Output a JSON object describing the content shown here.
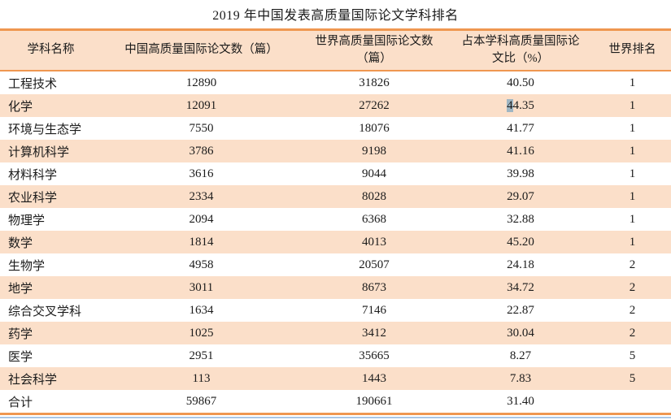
{
  "title": "2019 年中国发表高质量国际论文学科排名",
  "chart_data": {
    "type": "table",
    "title": "2019 年中国发表高质量国际论文学科排名",
    "columns": [
      "学科名称",
      "中国高质量国际论文数（篇）",
      "世界高质量国际论文数（篇）",
      "占本学科高质量国际论文比（%）",
      "世界排名"
    ],
    "rows": [
      [
        "工程技术",
        "12890",
        "31826",
        "40.50",
        "1"
      ],
      [
        "化学",
        "12091",
        "27262",
        "44.35",
        "1"
      ],
      [
        "环境与生态学",
        "7550",
        "18076",
        "41.77",
        "1"
      ],
      [
        "计算机科学",
        "3786",
        "9198",
        "41.16",
        "1"
      ],
      [
        "材料科学",
        "3616",
        "9044",
        "39.98",
        "1"
      ],
      [
        "农业科学",
        "2334",
        "8028",
        "29.07",
        "1"
      ],
      [
        "物理学",
        "2094",
        "6368",
        "32.88",
        "1"
      ],
      [
        "数学",
        "1814",
        "4013",
        "45.20",
        "1"
      ],
      [
        "生物学",
        "4958",
        "20507",
        "24.18",
        "2"
      ],
      [
        "地学",
        "3011",
        "8673",
        "34.72",
        "2"
      ],
      [
        "综合交叉学科",
        "1634",
        "7146",
        "22.87",
        "2"
      ],
      [
        "药学",
        "1025",
        "3412",
        "30.04",
        "2"
      ],
      [
        "医学",
        "2951",
        "35665",
        "8.27",
        "5"
      ],
      [
        "社会科学",
        "113",
        "1443",
        "7.83",
        "5"
      ],
      [
        "合计",
        "59867",
        "190661",
        "31.40",
        ""
      ]
    ],
    "highlight": {
      "row": 1,
      "col": 3,
      "char_index": 0
    },
    "layout_hints": {
      "stripe_pattern": "alternating white and peach rows starting with white",
      "grid": "off"
    }
  },
  "colors": {
    "header_bg": "#fbdfc9",
    "row_stripe": "#fbdfc9",
    "rule_orange": "#ef9750",
    "selection_highlight": "#9fb6c3",
    "page_bottom_line": "#a9c6e5",
    "text": "#1b1b1b"
  }
}
